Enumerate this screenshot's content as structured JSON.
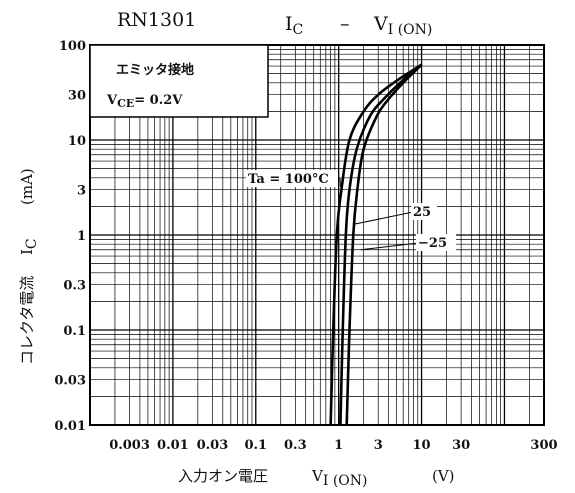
{
  "chart_data": {
    "type": "line",
    "title": {
      "part_number": "RN1301",
      "left_sym": "I",
      "left_sub": "C",
      "dash": "–",
      "right_sym": "V",
      "right_sub": "I (ON)"
    },
    "xlabel": {
      "text": "入力オン電圧",
      "sym": "V",
      "sub": "I (ON)",
      "unit": "(V)"
    },
    "ylabel": {
      "text": "コレクタ電流",
      "sym": "I",
      "sub": "C",
      "unit": "(mA)"
    },
    "x_scale": "log",
    "y_scale": "log",
    "xlim": [
      0.001,
      300
    ],
    "ylim": [
      0.01,
      100
    ],
    "x_ticks": [
      {
        "value": 0.003,
        "label": "0.003"
      },
      {
        "value": 0.01,
        "label": "0.01"
      },
      {
        "value": 0.03,
        "label": "0.03"
      },
      {
        "value": 0.1,
        "label": "0.1"
      },
      {
        "value": 0.3,
        "label": "0.3"
      },
      {
        "value": 1,
        "label": "1"
      },
      {
        "value": 3,
        "label": "3"
      },
      {
        "value": 10,
        "label": "10"
      },
      {
        "value": 30,
        "label": "30"
      },
      {
        "value": 300,
        "label": "300"
      }
    ],
    "y_ticks": [
      {
        "value": 100,
        "label": "100"
      },
      {
        "value": 30,
        "label": "30"
      },
      {
        "value": 10,
        "label": "10"
      },
      {
        "value": 3,
        "label": "3"
      },
      {
        "value": 1,
        "label": "1"
      },
      {
        "value": 0.3,
        "label": "0.3"
      },
      {
        "value": 0.1,
        "label": "0.1"
      },
      {
        "value": 0.03,
        "label": "0.03"
      },
      {
        "value": 0.01,
        "label": "0.01"
      }
    ],
    "grid": true,
    "condition_box": {
      "line1": "エミッタ接地",
      "line2_sym": "V",
      "line2_sub": "CE",
      "line2_rest": "= 0.2V"
    },
    "series": [
      {
        "name": "Ta = 100°C",
        "points": [
          [
            0.8,
            0.01
          ],
          [
            0.86,
            0.1
          ],
          [
            0.95,
            1
          ],
          [
            1.08,
            3
          ],
          [
            1.35,
            10
          ],
          [
            2.0,
            20
          ],
          [
            3.0,
            30
          ],
          [
            5.0,
            42
          ],
          [
            10,
            62
          ]
        ]
      },
      {
        "name": "25",
        "points": [
          [
            1.05,
            0.01
          ],
          [
            1.12,
            0.1
          ],
          [
            1.22,
            1
          ],
          [
            1.35,
            3
          ],
          [
            1.65,
            8
          ],
          [
            2.4,
            18
          ],
          [
            3.5,
            27
          ],
          [
            5.5,
            40
          ],
          [
            10,
            62
          ]
        ]
      },
      {
        "name": "−25",
        "points": [
          [
            1.25,
            0.01
          ],
          [
            1.35,
            0.1
          ],
          [
            1.5,
            1
          ],
          [
            1.68,
            3
          ],
          [
            2.0,
            8
          ],
          [
            2.9,
            18
          ],
          [
            4.0,
            27
          ],
          [
            6.0,
            40
          ],
          [
            10,
            62
          ]
        ]
      }
    ],
    "annotations": [
      {
        "label": "Ta = 100°C",
        "series": 0
      },
      {
        "label": "25",
        "series": 1
      },
      {
        "label": "−25",
        "series": 2
      }
    ]
  }
}
